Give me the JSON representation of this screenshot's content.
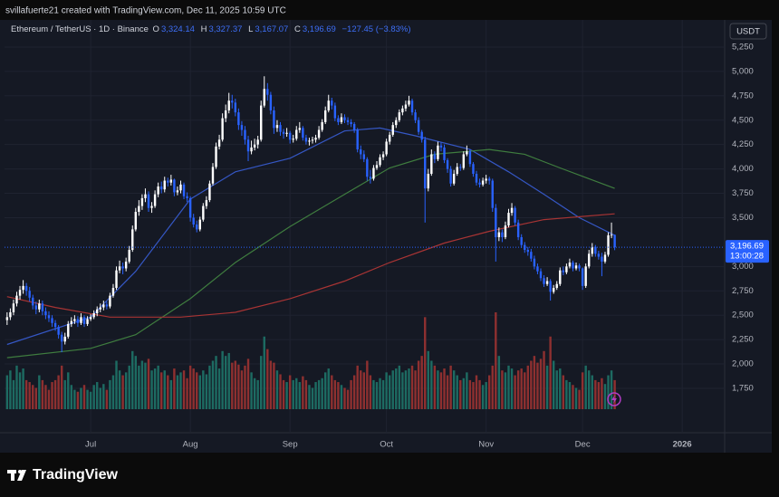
{
  "header": {
    "attribution": "svillafuerte21 created with TradingView.com, Dec 11, 2025 10:59 UTC"
  },
  "legend": {
    "symbol": "Ethereum / TetherUS · 1D · Binance",
    "open_label": "O",
    "open": "3,324.14",
    "high_label": "H",
    "high": "3,327.37",
    "low_label": "L",
    "low": "3,167.07",
    "close_label": "C",
    "close": "3,196.69",
    "change": "−127.45 (−3.83%)"
  },
  "footer": {
    "logo": "TradingView"
  },
  "chart_data": {
    "type": "candlestick",
    "currency": "USDT",
    "up_color": "#ffffff",
    "down_color": "#2962ff",
    "volume_up_color": "#1d6b62",
    "volume_down_color": "#8e3030",
    "grid": true,
    "xlim": [
      -0.8,
      223.2
    ],
    "xticks": [
      {
        "value": 26,
        "label": "Jul"
      },
      {
        "value": 57,
        "label": "Aug"
      },
      {
        "value": 88,
        "label": "Sep"
      },
      {
        "value": 118,
        "label": "Oct"
      },
      {
        "value": 149,
        "label": "Nov"
      },
      {
        "value": 179,
        "label": "Dec"
      },
      {
        "value": 210,
        "label": "2026"
      }
    ],
    "ylim": [
      1295,
      5528
    ],
    "yticks": [
      {
        "value": 1750,
        "label": "1,750"
      },
      {
        "value": 2000,
        "label": "2,000"
      },
      {
        "value": 2250,
        "label": "2,250"
      },
      {
        "value": 2500,
        "label": "2,500"
      },
      {
        "value": 2750,
        "label": "2,750"
      },
      {
        "value": 3000,
        "label": "3,000"
      },
      {
        "value": 3500,
        "label": "3,500"
      },
      {
        "value": 3750,
        "label": "3,750"
      },
      {
        "value": 4000,
        "label": "4,000"
      },
      {
        "value": 4250,
        "label": "4,250"
      },
      {
        "value": 4500,
        "label": "4,500"
      },
      {
        "value": 4750,
        "label": "4,750"
      },
      {
        "value": 5000,
        "label": "5,000"
      },
      {
        "value": 5250,
        "label": "5,250"
      }
    ],
    "last_price_label": "3,196.69",
    "countdown": "13:00:28",
    "last_price_color": "#2962ff",
    "volume_ylim": [
      0,
      100
    ],
    "ohlc": [
      [
        2450,
        2530,
        2400,
        2480
      ],
      [
        2480,
        2570,
        2450,
        2530
      ],
      [
        2530,
        2660,
        2500,
        2620
      ],
      [
        2620,
        2740,
        2590,
        2700
      ],
      [
        2700,
        2800,
        2660,
        2760
      ],
      [
        2760,
        2860,
        2720,
        2800
      ],
      [
        2800,
        2830,
        2700,
        2750
      ],
      [
        2750,
        2790,
        2640,
        2680
      ],
      [
        2680,
        2710,
        2560,
        2600
      ],
      [
        2600,
        2640,
        2510,
        2560
      ],
      [
        2560,
        2660,
        2530,
        2620
      ],
      [
        2620,
        2650,
        2500,
        2540
      ],
      [
        2540,
        2580,
        2460,
        2500
      ],
      [
        2500,
        2540,
        2430,
        2470
      ],
      [
        2470,
        2500,
        2380,
        2420
      ],
      [
        2420,
        2450,
        2340,
        2380
      ],
      [
        2380,
        2400,
        2260,
        2300
      ],
      [
        2300,
        2330,
        2120,
        2230
      ],
      [
        2230,
        2320,
        2200,
        2280
      ],
      [
        2280,
        2440,
        2260,
        2410
      ],
      [
        2410,
        2480,
        2380,
        2440
      ],
      [
        2440,
        2500,
        2410,
        2460
      ],
      [
        2460,
        2490,
        2380,
        2420
      ],
      [
        2420,
        2520,
        2400,
        2480
      ],
      [
        2480,
        2500,
        2380,
        2410
      ],
      [
        2410,
        2490,
        2390,
        2460
      ],
      [
        2460,
        2510,
        2440,
        2480
      ],
      [
        2480,
        2550,
        2460,
        2520
      ],
      [
        2520,
        2590,
        2490,
        2560
      ],
      [
        2560,
        2620,
        2530,
        2580
      ],
      [
        2580,
        2650,
        2550,
        2610
      ],
      [
        2610,
        2640,
        2560,
        2590
      ],
      [
        2590,
        2730,
        2570,
        2700
      ],
      [
        2700,
        2820,
        2680,
        2780
      ],
      [
        2780,
        3000,
        2760,
        2960
      ],
      [
        2960,
        3060,
        2930,
        3000
      ],
      [
        3000,
        3040,
        2920,
        2980
      ],
      [
        2980,
        3090,
        2950,
        3050
      ],
      [
        3050,
        3210,
        3030,
        3170
      ],
      [
        3170,
        3420,
        3150,
        3380
      ],
      [
        3380,
        3600,
        3360,
        3560
      ],
      [
        3560,
        3680,
        3520,
        3620
      ],
      [
        3620,
        3740,
        3580,
        3700
      ],
      [
        3700,
        3800,
        3660,
        3740
      ],
      [
        3740,
        3770,
        3560,
        3600
      ],
      [
        3600,
        3660,
        3550,
        3620
      ],
      [
        3620,
        3780,
        3600,
        3740
      ],
      [
        3740,
        3860,
        3710,
        3820
      ],
      [
        3820,
        3870,
        3750,
        3790
      ],
      [
        3790,
        3920,
        3760,
        3880
      ],
      [
        3880,
        3910,
        3820,
        3860
      ],
      [
        3860,
        3940,
        3830,
        3890
      ],
      [
        3890,
        3900,
        3720,
        3760
      ],
      [
        3760,
        3820,
        3730,
        3780
      ],
      [
        3780,
        3880,
        3750,
        3840
      ],
      [
        3840,
        3860,
        3690,
        3720
      ],
      [
        3720,
        3760,
        3660,
        3700
      ],
      [
        3700,
        3720,
        3460,
        3500
      ],
      [
        3500,
        3540,
        3400,
        3430
      ],
      [
        3430,
        3470,
        3350,
        3380
      ],
      [
        3380,
        3510,
        3360,
        3480
      ],
      [
        3480,
        3650,
        3460,
        3620
      ],
      [
        3620,
        3720,
        3590,
        3680
      ],
      [
        3680,
        3880,
        3660,
        3850
      ],
      [
        3850,
        4060,
        3830,
        4020
      ],
      [
        4020,
        4270,
        4000,
        4230
      ],
      [
        4230,
        4350,
        4200,
        4300
      ],
      [
        4300,
        4570,
        4280,
        4520
      ],
      [
        4520,
        4660,
        4480,
        4600
      ],
      [
        4600,
        4780,
        4570,
        4700
      ],
      [
        4700,
        4760,
        4620,
        4680
      ],
      [
        4680,
        4720,
        4540,
        4580
      ],
      [
        4580,
        4620,
        4400,
        4450
      ],
      [
        4450,
        4490,
        4340,
        4400
      ],
      [
        4400,
        4440,
        4250,
        4300
      ],
      [
        4300,
        4340,
        4080,
        4180
      ],
      [
        4180,
        4290,
        4150,
        4220
      ],
      [
        4220,
        4310,
        4190,
        4250
      ],
      [
        4250,
        4340,
        4210,
        4300
      ],
      [
        4300,
        4700,
        4280,
        4650
      ],
      [
        4650,
        4950,
        4630,
        4820
      ],
      [
        4820,
        4880,
        4700,
        4760
      ],
      [
        4760,
        4790,
        4560,
        4600
      ],
      [
        4600,
        4640,
        4360,
        4420
      ],
      [
        4420,
        4500,
        4380,
        4450
      ],
      [
        4450,
        4480,
        4340,
        4380
      ],
      [
        4380,
        4410,
        4310,
        4360
      ],
      [
        4360,
        4420,
        4330,
        4370
      ],
      [
        4370,
        4390,
        4260,
        4300
      ],
      [
        4300,
        4350,
        4270,
        4310
      ],
      [
        4310,
        4440,
        4290,
        4400
      ],
      [
        4400,
        4480,
        4370,
        4420
      ],
      [
        4420,
        4440,
        4290,
        4320
      ],
      [
        4320,
        4350,
        4250,
        4280
      ],
      [
        4280,
        4320,
        4240,
        4290
      ],
      [
        4290,
        4330,
        4260,
        4300
      ],
      [
        4300,
        4350,
        4270,
        4320
      ],
      [
        4320,
        4440,
        4300,
        4400
      ],
      [
        4400,
        4510,
        4380,
        4480
      ],
      [
        4480,
        4640,
        4460,
        4600
      ],
      [
        4600,
        4760,
        4580,
        4700
      ],
      [
        4700,
        4730,
        4610,
        4650
      ],
      [
        4650,
        4680,
        4490,
        4520
      ],
      [
        4520,
        4550,
        4450,
        4480
      ],
      [
        4480,
        4570,
        4460,
        4530
      ],
      [
        4530,
        4560,
        4470,
        4500
      ],
      [
        4500,
        4530,
        4450,
        4480
      ],
      [
        4480,
        4510,
        4430,
        4460
      ],
      [
        4460,
        4480,
        4370,
        4400
      ],
      [
        4400,
        4420,
        4170,
        4200
      ],
      [
        4200,
        4240,
        4100,
        4150
      ],
      [
        4150,
        4190,
        4070,
        4100
      ],
      [
        4100,
        4120,
        3880,
        3920
      ],
      [
        3920,
        3990,
        3850,
        3900
      ],
      [
        3900,
        4040,
        3880,
        4010
      ],
      [
        4010,
        4080,
        3990,
        4040
      ],
      [
        4040,
        4150,
        4020,
        4120
      ],
      [
        4120,
        4180,
        4090,
        4150
      ],
      [
        4150,
        4310,
        4130,
        4280
      ],
      [
        4280,
        4380,
        4250,
        4350
      ],
      [
        4350,
        4480,
        4330,
        4450
      ],
      [
        4450,
        4530,
        4420,
        4500
      ],
      [
        4500,
        4610,
        4480,
        4580
      ],
      [
        4580,
        4650,
        4550,
        4620
      ],
      [
        4620,
        4700,
        4590,
        4660
      ],
      [
        4660,
        4750,
        4640,
        4700
      ],
      [
        4700,
        4720,
        4550,
        4580
      ],
      [
        4580,
        4610,
        4470,
        4500
      ],
      [
        4500,
        4530,
        4350,
        4380
      ],
      [
        4380,
        4400,
        4270,
        4300
      ],
      [
        4300,
        4330,
        3450,
        3800
      ],
      [
        3800,
        4000,
        3770,
        3950
      ],
      [
        3950,
        4200,
        3930,
        4150
      ],
      [
        4150,
        4180,
        4060,
        4100
      ],
      [
        4100,
        4280,
        4080,
        4240
      ],
      [
        4240,
        4270,
        4180,
        4220
      ],
      [
        4220,
        4250,
        4060,
        4090
      ],
      [
        4090,
        4110,
        3960,
        4000
      ],
      [
        4000,
        4030,
        3820,
        3850
      ],
      [
        3850,
        3990,
        3830,
        3950
      ],
      [
        3950,
        4060,
        3930,
        4020
      ],
      [
        4020,
        4050,
        3980,
        4010
      ],
      [
        4010,
        4180,
        3990,
        4150
      ],
      [
        4150,
        4240,
        4130,
        4180
      ],
      [
        4180,
        4200,
        4020,
        4050
      ],
      [
        4050,
        4070,
        3920,
        3950
      ],
      [
        3950,
        3980,
        3830,
        3860
      ],
      [
        3860,
        3900,
        3810,
        3840
      ],
      [
        3840,
        3910,
        3820,
        3880
      ],
      [
        3880,
        3940,
        3850,
        3900
      ],
      [
        3900,
        3920,
        3840,
        3880
      ],
      [
        3880,
        3900,
        3560,
        3600
      ],
      [
        3600,
        3640,
        3050,
        3300
      ],
      [
        3300,
        3400,
        3260,
        3350
      ],
      [
        3350,
        3380,
        3250,
        3300
      ],
      [
        3300,
        3460,
        3280,
        3420
      ],
      [
        3420,
        3590,
        3400,
        3550
      ],
      [
        3550,
        3650,
        3520,
        3600
      ],
      [
        3600,
        3620,
        3420,
        3450
      ],
      [
        3450,
        3480,
        3270,
        3300
      ],
      [
        3300,
        3330,
        3190,
        3220
      ],
      [
        3220,
        3250,
        3140,
        3170
      ],
      [
        3170,
        3200,
        3110,
        3150
      ],
      [
        3150,
        3180,
        3050,
        3080
      ],
      [
        3080,
        3110,
        2970,
        3000
      ],
      [
        3000,
        3030,
        2920,
        2950
      ],
      [
        2950,
        2980,
        2850,
        2880
      ],
      [
        2880,
        2910,
        2790,
        2820
      ],
      [
        2820,
        2890,
        2800,
        2850
      ],
      [
        2850,
        2870,
        2650,
        2740
      ],
      [
        2740,
        2810,
        2720,
        2780
      ],
      [
        2780,
        2850,
        2760,
        2820
      ],
      [
        2820,
        2990,
        2800,
        2960
      ],
      [
        2960,
        3000,
        2910,
        2940
      ],
      [
        2940,
        3030,
        2920,
        3000
      ],
      [
        3000,
        3080,
        2980,
        3040
      ],
      [
        3040,
        3060,
        2950,
        2980
      ],
      [
        2980,
        3040,
        2960,
        3010
      ],
      [
        3010,
        3030,
        2950,
        2980
      ],
      [
        2980,
        2990,
        2760,
        2800
      ],
      [
        2800,
        3030,
        2780,
        3000
      ],
      [
        3000,
        3170,
        2980,
        3130
      ],
      [
        3130,
        3240,
        3100,
        3200
      ],
      [
        3200,
        3220,
        3100,
        3130
      ],
      [
        3130,
        3160,
        3070,
        3100
      ],
      [
        3100,
        3140,
        2900,
        3050
      ],
      [
        3050,
        3150,
        3030,
        3120
      ],
      [
        3120,
        3350,
        3100,
        3320
      ],
      [
        3320,
        3450,
        3290,
        3324.14
      ],
      [
        3324.14,
        3327.37,
        3167.07,
        3196.69
      ]
    ],
    "volume": [
      35,
      40,
      30,
      45,
      38,
      42,
      30,
      28,
      25,
      22,
      35,
      30,
      25,
      20,
      28,
      30,
      35,
      45,
      30,
      38,
      25,
      20,
      18,
      22,
      25,
      20,
      18,
      25,
      28,
      22,
      26,
      20,
      30,
      35,
      50,
      40,
      35,
      38,
      45,
      60,
      55,
      45,
      50,
      48,
      52,
      40,
      42,
      45,
      38,
      40,
      35,
      30,
      42,
      35,
      38,
      40,
      32,
      45,
      42,
      38,
      35,
      40,
      36,
      45,
      50,
      55,
      42,
      60,
      55,
      58,
      48,
      50,
      46,
      40,
      45,
      52,
      38,
      32,
      30,
      55,
      75,
      62,
      50,
      48,
      40,
      36,
      30,
      28,
      35,
      30,
      32,
      28,
      34,
      30,
      25,
      22,
      28,
      30,
      32,
      38,
      42,
      35,
      30,
      28,
      25,
      22,
      20,
      30,
      35,
      45,
      40,
      38,
      50,
      35,
      30,
      28,
      32,
      30,
      38,
      35,
      40,
      42,
      45,
      38,
      40,
      42,
      45,
      40,
      50,
      55,
      95,
      60,
      50,
      45,
      40,
      38,
      42,
      35,
      45,
      40,
      35,
      30,
      32,
      38,
      30,
      28,
      35,
      30,
      25,
      28,
      35,
      45,
      100,
      55,
      40,
      38,
      45,
      42,
      35,
      40,
      42,
      38,
      45,
      50,
      55,
      48,
      52,
      60,
      45,
      75,
      50,
      40,
      42,
      35,
      30,
      28,
      25,
      22,
      20,
      38,
      45,
      40,
      35,
      30,
      28,
      32,
      26,
      35,
      40,
      30
    ],
    "moving_averages": [
      {
        "color": "#3557c4",
        "x": [
          0,
          26,
          40,
          57,
          71,
          88,
          105,
          116,
          127,
          144,
          156,
          167,
          178,
          189
        ],
        "values": [
          2200,
          2480,
          2950,
          3690,
          3970,
          4110,
          4390,
          4420,
          4340,
          4200,
          3970,
          3740,
          3500,
          3320
        ]
      },
      {
        "color": "#3f7d3f",
        "x": [
          0,
          26,
          40,
          57,
          71,
          88,
          105,
          119,
          133,
          150,
          161,
          172,
          189
        ],
        "values": [
          2065,
          2160,
          2300,
          2670,
          3040,
          3410,
          3740,
          4010,
          4150,
          4200,
          4150,
          4010,
          3800
        ]
      },
      {
        "color": "#a83434",
        "x": [
          0,
          15,
          32,
          54,
          71,
          88,
          105,
          119,
          136,
          150,
          167,
          189
        ],
        "values": [
          2690,
          2580,
          2480,
          2480,
          2530,
          2670,
          2850,
          3040,
          3240,
          3360,
          3480,
          3540
        ]
      }
    ]
  }
}
